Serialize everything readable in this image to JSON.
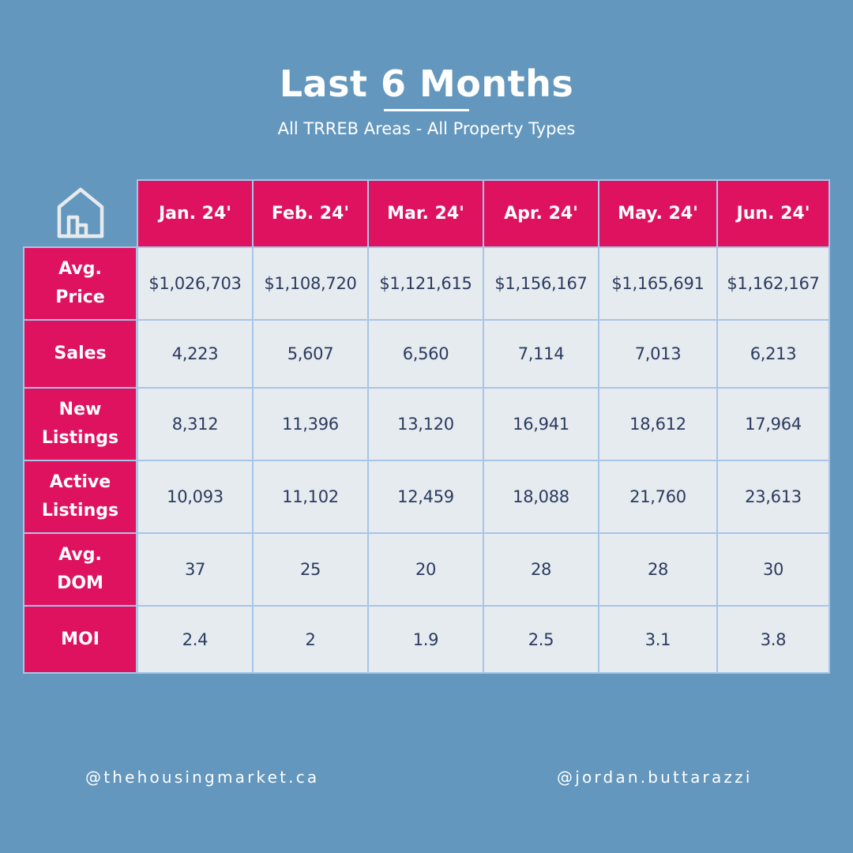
{
  "header": {
    "title": "Last 6 Months",
    "subtitle": "All TRREB Areas - All Property Types"
  },
  "table": {
    "corner_icon": "house-icon",
    "columns": [
      "Jan. 24'",
      "Feb. 24'",
      "Mar. 24'",
      "Apr. 24'",
      "May. 24'",
      "Jun. 24'"
    ],
    "rows": [
      {
        "label": "Avg.\nPrice",
        "values": [
          "$1,026,703",
          "$1,108,720",
          "$1,121,615",
          "$1,156,167",
          "$1,165,691",
          "$1,162,167"
        ]
      },
      {
        "label": "Sales",
        "values": [
          "4,223",
          "5,607",
          "6,560",
          "7,114",
          "7,013",
          "6,213"
        ]
      },
      {
        "label": "New\nListings",
        "values": [
          "8,312",
          "11,396",
          "13,120",
          "16,941",
          "18,612",
          "17,964"
        ]
      },
      {
        "label": "Active\nListings",
        "values": [
          "10,093",
          "11,102",
          "12,459",
          "18,088",
          "21,760",
          "23,613"
        ]
      },
      {
        "label": "Avg.\nDOM",
        "values": [
          "37",
          "25",
          "20",
          "28",
          "28",
          "30"
        ]
      },
      {
        "label": "MOI",
        "values": [
          "2.4",
          "2",
          "1.9",
          "2.5",
          "3.1",
          "3.8"
        ]
      }
    ]
  },
  "footer": {
    "left_handle": "@thehousingmarket.ca",
    "right_handle": "@jordan.buttarazzi"
  },
  "colors": {
    "background": "#6497bd",
    "accent": "#df1260",
    "cell": "#e5ebef",
    "grid": "#a8c5e8",
    "cell_text": "#2c3a5e"
  }
}
